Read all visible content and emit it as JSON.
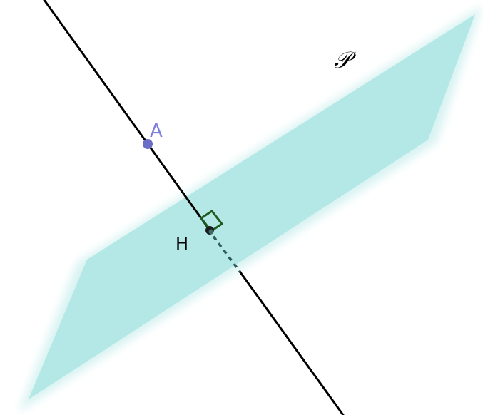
{
  "figure": {
    "plane": {
      "label": "𝒫",
      "color": "#b3e8e6",
      "edge_color": "#d8f3f2"
    },
    "line": {
      "color": "#000000",
      "hidden_part_color": "#2f5a5a"
    },
    "point_a": {
      "label": "A",
      "color": "#6b6bc8"
    },
    "point_h": {
      "label": "H",
      "color": "#000000"
    },
    "right_angle_mark": {
      "color": "#1f5a1f"
    }
  }
}
